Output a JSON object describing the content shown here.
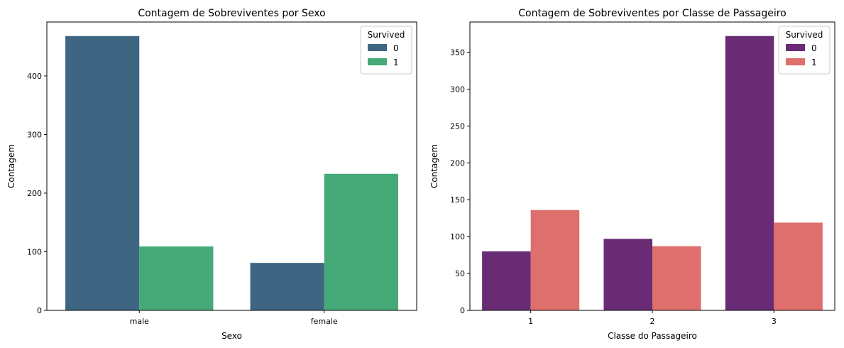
{
  "chart_data": [
    {
      "type": "bar",
      "title": "Contagem de Sobreviventes por Sexo",
      "xlabel": "Sexo",
      "ylabel": "Contagem",
      "categories": [
        "male",
        "female"
      ],
      "series": [
        {
          "name": "0",
          "color": "#3e6682",
          "values": [
            468,
            81
          ]
        },
        {
          "name": "1",
          "color": "#45a978",
          "values": [
            109,
            233
          ]
        }
      ],
      "ylim": [
        0,
        492
      ],
      "yticks": [
        0,
        100,
        200,
        300,
        400
      ],
      "grid": false,
      "legend": {
        "title": "Survived",
        "position": "top-right"
      }
    },
    {
      "type": "bar",
      "title": "Contagem de Sobreviventes por Classe de Passageiro",
      "xlabel": "Classe do Passageiro",
      "ylabel": "Contagem",
      "categories": [
        "1",
        "2",
        "3"
      ],
      "series": [
        {
          "name": "0",
          "color": "#692c74",
          "values": [
            80,
            97,
            372
          ]
        },
        {
          "name": "1",
          "color": "#df6f6d",
          "values": [
            136,
            87,
            119
          ]
        }
      ],
      "ylim": [
        0,
        391
      ],
      "yticks": [
        0,
        50,
        100,
        150,
        200,
        250,
        300,
        350
      ],
      "grid": false,
      "legend": {
        "title": "Survived",
        "position": "top-right"
      }
    }
  ]
}
